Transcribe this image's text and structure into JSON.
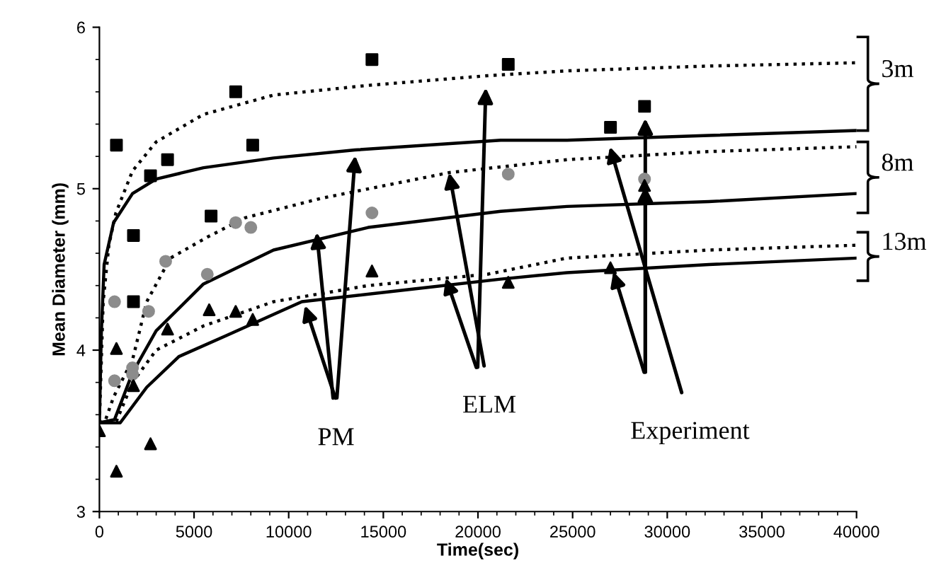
{
  "chart_data": {
    "type": "scatter",
    "xlabel": "Time(sec)",
    "ylabel": "Mean Diameter (mm)",
    "xlim": [
      0,
      40000
    ],
    "ylim": [
      3,
      6
    ],
    "xticks": [
      0,
      5000,
      10000,
      15000,
      20000,
      25000,
      30000,
      35000,
      40000
    ],
    "yticks": [
      3,
      4,
      5,
      6
    ],
    "grid": false,
    "legend": false,
    "series": [
      {
        "type": "scatter",
        "marker": "square",
        "color": "#000000",
        "x": [
          900,
          1800,
          1800,
          2700,
          3600,
          5900,
          7200,
          8100,
          14400,
          21600,
          27000,
          28800
        ],
        "values": [
          5.27,
          4.71,
          4.3,
          5.08,
          5.18,
          4.83,
          5.6,
          5.27,
          5.8,
          5.77,
          5.38,
          5.51
        ]
      },
      {
        "type": "scatter",
        "marker": "circle",
        "color": "#8c8c8c",
        "x": [
          800,
          800,
          1750,
          1750,
          2600,
          3500,
          5700,
          7200,
          8000,
          14400,
          21600,
          28800
        ],
        "values": [
          4.3,
          3.81,
          3.89,
          3.85,
          4.24,
          4.55,
          4.47,
          4.79,
          4.76,
          4.85,
          5.09,
          5.06
        ]
      },
      {
        "type": "scatter",
        "marker": "triangle",
        "color": "#000000",
        "x": [
          0,
          900,
          900,
          1800,
          2700,
          3600,
          5800,
          7200,
          8100,
          14400,
          21600,
          27000,
          28800
        ],
        "values": [
          3.5,
          4.01,
          3.25,
          3.78,
          3.42,
          4.13,
          4.25,
          4.24,
          4.19,
          4.49,
          4.42,
          4.51,
          5.02
        ]
      },
      {
        "type": "line",
        "line_style": "dotted",
        "color": "#000000",
        "x": [
          0,
          200,
          500,
          870,
          1750,
          3000,
          5500,
          9200,
          14200,
          20500,
          24700,
          32200,
          40000
        ],
        "values": [
          3.55,
          4.3,
          4.65,
          4.85,
          5.11,
          5.29,
          5.46,
          5.58,
          5.64,
          5.7,
          5.73,
          5.76,
          5.78
        ]
      },
      {
        "type": "line",
        "line_style": "solid",
        "color": "#000000",
        "x": [
          0,
          100,
          250,
          750,
          1750,
          3000,
          5500,
          9200,
          13500,
          21200,
          24700,
          32200,
          40000
        ],
        "values": [
          3.55,
          4.1,
          4.53,
          4.79,
          4.97,
          5.06,
          5.13,
          5.19,
          5.24,
          5.3,
          5.3,
          5.33,
          5.36
        ]
      },
      {
        "type": "line",
        "line_style": "dotted",
        "color": "#000000",
        "x": [
          0,
          300,
          750,
          1750,
          2500,
          3750,
          5700,
          7700,
          11700,
          18500,
          24700,
          32200,
          40000
        ],
        "values": [
          3.55,
          3.56,
          3.71,
          3.94,
          4.3,
          4.57,
          4.7,
          4.82,
          4.94,
          5.1,
          5.18,
          5.23,
          5.26
        ]
      },
      {
        "type": "line",
        "line_style": "solid",
        "color": "#000000",
        "x": [
          0,
          800,
          1750,
          3000,
          5500,
          9200,
          14200,
          21200,
          24700,
          32200,
          40000
        ],
        "values": [
          3.55,
          3.57,
          3.86,
          4.12,
          4.41,
          4.62,
          4.76,
          4.86,
          4.89,
          4.92,
          4.97
        ]
      },
      {
        "type": "line",
        "line_style": "dotted",
        "color": "#000000",
        "x": [
          0,
          900,
          1750,
          3000,
          5500,
          9200,
          14200,
          20500,
          24700,
          32200,
          40000
        ],
        "values": [
          3.55,
          3.56,
          3.8,
          4.0,
          4.15,
          4.3,
          4.4,
          4.47,
          4.57,
          4.62,
          4.65
        ]
      },
      {
        "type": "line",
        "line_style": "solid",
        "color": "#000000",
        "x": [
          0,
          1100,
          2500,
          4200,
          6700,
          10700,
          16700,
          21200,
          24700,
          32200,
          40000
        ],
        "values": [
          3.55,
          3.55,
          3.77,
          3.96,
          4.09,
          4.3,
          4.38,
          4.44,
          4.48,
          4.53,
          4.57
        ]
      }
    ],
    "annotations": [
      {
        "text": "PM",
        "x": 11480,
        "y": 4.73
      },
      {
        "text": "ELM",
        "x": 18480,
        "y": 5.1
      },
      {
        "text": "Experiment",
        "x": 26970,
        "y": 5.26
      },
      "3m",
      "8m",
      "13m"
    ]
  }
}
